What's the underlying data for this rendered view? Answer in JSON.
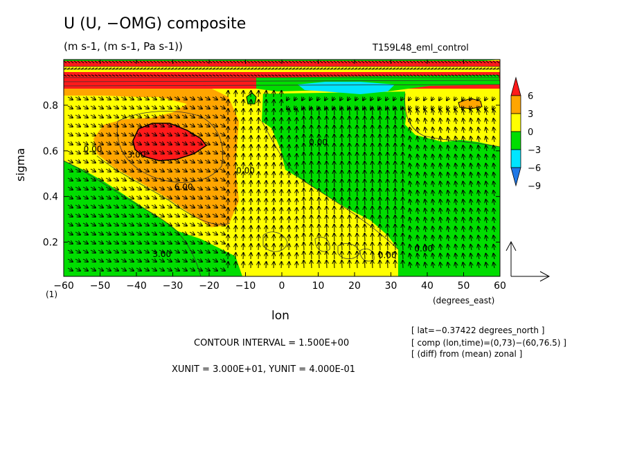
{
  "header": {
    "title": "U (U, −OMG) composite",
    "units": "(m s-1, (m s-1, Pa s-1))",
    "run": "T159L48_eml_control"
  },
  "footer": {
    "contour_interval": "CONTOUR INTERVAL = 1.500E+00",
    "xyunit": "XUNIT = 3.000E+01, YUNIT = 4.000E-01",
    "info": [
      "[ lat=−0.37422 degrees_north ]",
      "[ comp (lon,time)=(0,73)−(60,76.5) ]",
      "[ (diff) from (mean) zonal ]"
    ],
    "one_label": "(1)"
  },
  "chart_data": {
    "type": "heatmap",
    "xlabel": "lon",
    "xunit": "(degrees_east)",
    "ylabel": "sigma",
    "xlim": [
      -60,
      60
    ],
    "ylim": [
      1.0,
      0.05
    ],
    "x_ticks": [
      -60,
      -50,
      -40,
      -30,
      -20,
      -10,
      0,
      10,
      20,
      30,
      40,
      50,
      60
    ],
    "x_tick_labels": [
      "−60",
      "−50",
      "−40",
      "−30",
      "−20",
      "−10",
      "0",
      "10",
      "20",
      "30",
      "40",
      "50",
      "60"
    ],
    "y_ticks": [
      0.2,
      0.4,
      0.6,
      0.8
    ],
    "y_tick_labels": [
      "0.2",
      "0.4",
      "0.6",
      "0.8"
    ],
    "colorbar": {
      "levels": [
        -9,
        -6,
        -3,
        0,
        3,
        6
      ],
      "labels": [
        "6",
        "3",
        "0",
        "−3",
        "−6",
        "−9"
      ],
      "colors": [
        "#1f78e6",
        "#00e5ff",
        "#00dd00",
        "#ffff00",
        "#ffa500",
        "#ff1a1a"
      ]
    },
    "contour_labels": [
      {
        "text": "3.00",
        "x": -33,
        "y": 0.135
      },
      {
        "text": "6.00",
        "x": -27,
        "y": 0.43
      },
      {
        "text": "3.00",
        "x": -40,
        "y": 0.57
      },
      {
        "text": "0.00",
        "x": -52,
        "y": 0.595
      },
      {
        "text": "0.00",
        "x": -10,
        "y": 0.5
      },
      {
        "text": "0.00",
        "x": 10,
        "y": 0.625
      },
      {
        "text": "0.00",
        "x": 29,
        "y": 0.13
      },
      {
        "text": "0.00",
        "x": 39,
        "y": 0.16
      }
    ],
    "vector_reference": {
      "xunit": 30.0,
      "yunit": 0.4
    }
  }
}
